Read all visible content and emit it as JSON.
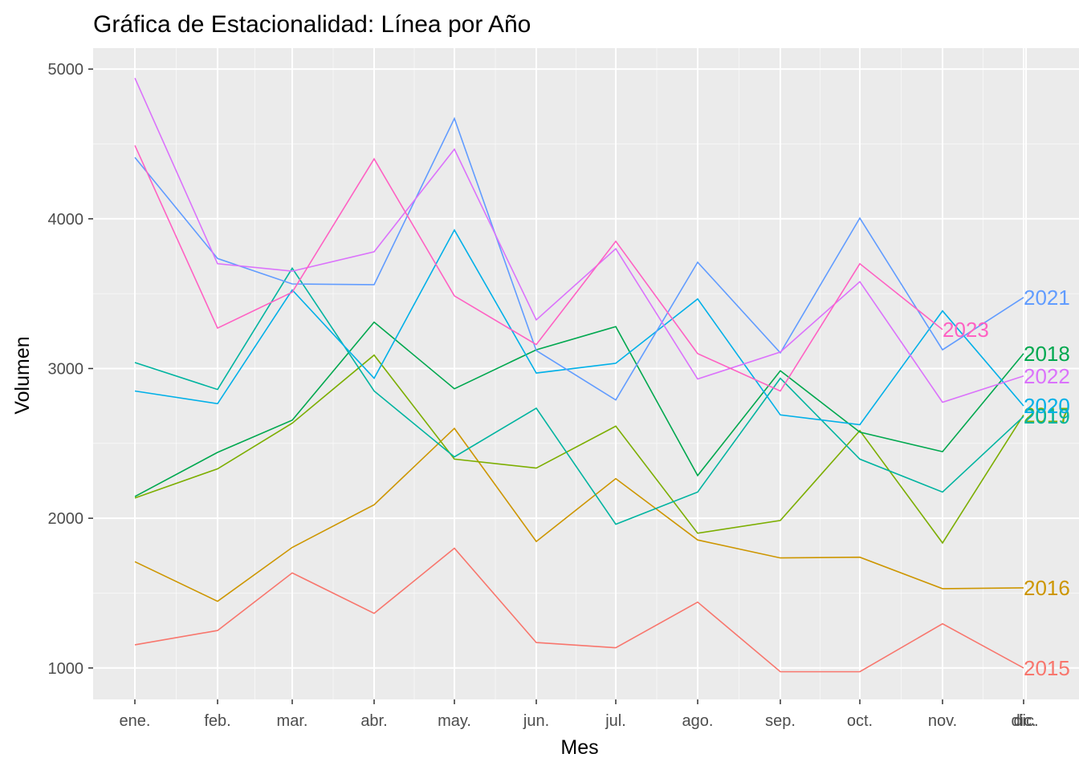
{
  "chart_data": {
    "type": "line",
    "title": "Gráfica de Estacionalidad: Línea por Año",
    "xlabel": "Mes",
    "ylabel": "Volumen",
    "ylim": [
      790,
      5140
    ],
    "yticks": [
      1000,
      2000,
      3000,
      4000,
      5000
    ],
    "grid": true,
    "legend": "none (labels at line ends)",
    "background": "#ebebeb",
    "categories": [
      "ene.",
      "feb.",
      "mar.",
      "abr.",
      "may.",
      "jun.",
      "jul.",
      "ago.",
      "sep.",
      "oct.",
      "nov.",
      "dic."
    ],
    "end_labels_overlap_text": "dic.",
    "series": [
      {
        "name": "2015",
        "color": "#F8766D",
        "values": [
          1155,
          1250,
          1635,
          1365,
          1800,
          1170,
          1135,
          1440,
          975,
          975,
          1295,
          1000
        ]
      },
      {
        "name": "2016",
        "color": "#CD9600",
        "values": [
          1710,
          1445,
          1805,
          2090,
          2600,
          1845,
          2265,
          1855,
          1735,
          1740,
          1530,
          1535
        ]
      },
      {
        "name": "2017",
        "color": "#7CAE00",
        "values": [
          2135,
          2330,
          2635,
          3090,
          2395,
          2335,
          2615,
          1900,
          1985,
          2585,
          1835,
          2690
        ]
      },
      {
        "name": "2018",
        "color": "#00A84F",
        "values": [
          2145,
          2440,
          2655,
          3310,
          2865,
          3125,
          3280,
          2285,
          2985,
          2575,
          2445,
          3100
        ]
      },
      {
        "name": "2019",
        "color": "#00B4A0",
        "values": [
          3040,
          2860,
          3670,
          2850,
          2410,
          2735,
          1960,
          2175,
          2935,
          2395,
          2175,
          2680
        ]
      },
      {
        "name": "2020",
        "color": "#00B0E8",
        "values": [
          2850,
          2765,
          3525,
          2935,
          3925,
          2970,
          3035,
          3465,
          2690,
          2625,
          3385,
          2750
        ]
      },
      {
        "name": "2021",
        "color": "#619CFF",
        "values": [
          4410,
          3735,
          3565,
          3560,
          4670,
          3120,
          2790,
          3710,
          3105,
          4005,
          3125,
          3475
        ]
      },
      {
        "name": "2022",
        "color": "#DB72FB",
        "values": [
          4940,
          3700,
          3650,
          3780,
          4465,
          3325,
          3800,
          2930,
          3110,
          3580,
          2775,
          2950
        ]
      },
      {
        "name": "2023",
        "color": "#FF61C3",
        "values": [
          4490,
          3270,
          3510,
          4400,
          3485,
          3160,
          3850,
          3100,
          2850,
          3700,
          3260,
          null
        ]
      }
    ]
  }
}
